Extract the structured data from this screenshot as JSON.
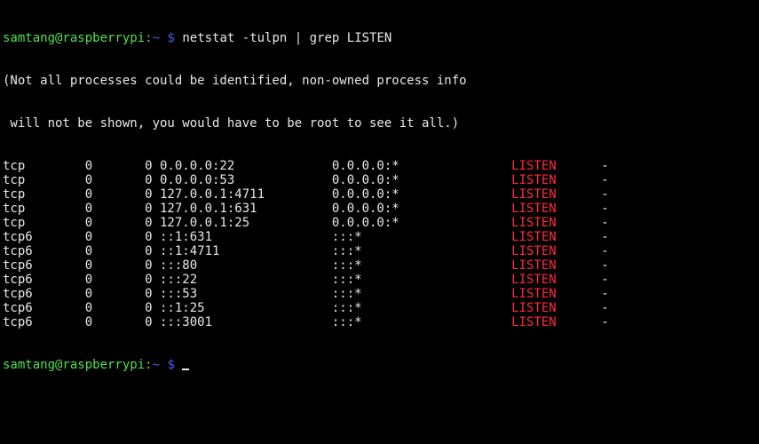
{
  "prompt": {
    "user_host": "samtang@raspberrypi",
    "sep": ":",
    "path": "~",
    "symbol": "$"
  },
  "command": "netstat -tulpn | grep LISTEN",
  "notice": [
    "(Not all processes could be identified, non-owned process info",
    " will not be shown, you would have to be root to see it all.)"
  ],
  "rows": [
    {
      "proto": "tcp",
      "recvq": "0",
      "sendq": "0",
      "local": "0.0.0.0:22",
      "foreign": "0.0.0.0:*",
      "state": "LISTEN",
      "pid": "-"
    },
    {
      "proto": "tcp",
      "recvq": "0",
      "sendq": "0",
      "local": "0.0.0.0:53",
      "foreign": "0.0.0.0:*",
      "state": "LISTEN",
      "pid": "-"
    },
    {
      "proto": "tcp",
      "recvq": "0",
      "sendq": "0",
      "local": "127.0.0.1:4711",
      "foreign": "0.0.0.0:*",
      "state": "LISTEN",
      "pid": "-"
    },
    {
      "proto": "tcp",
      "recvq": "0",
      "sendq": "0",
      "local": "127.0.0.1:631",
      "foreign": "0.0.0.0:*",
      "state": "LISTEN",
      "pid": "-"
    },
    {
      "proto": "tcp",
      "recvq": "0",
      "sendq": "0",
      "local": "127.0.0.1:25",
      "foreign": "0.0.0.0:*",
      "state": "LISTEN",
      "pid": "-"
    },
    {
      "proto": "tcp6",
      "recvq": "0",
      "sendq": "0",
      "local": "::1:631",
      "foreign": ":::*",
      "state": "LISTEN",
      "pid": "-"
    },
    {
      "proto": "tcp6",
      "recvq": "0",
      "sendq": "0",
      "local": "::1:4711",
      "foreign": ":::*",
      "state": "LISTEN",
      "pid": "-"
    },
    {
      "proto": "tcp6",
      "recvq": "0",
      "sendq": "0",
      "local": ":::80",
      "foreign": ":::*",
      "state": "LISTEN",
      "pid": "-"
    },
    {
      "proto": "tcp6",
      "recvq": "0",
      "sendq": "0",
      "local": ":::22",
      "foreign": ":::*",
      "state": "LISTEN",
      "pid": "-"
    },
    {
      "proto": "tcp6",
      "recvq": "0",
      "sendq": "0",
      "local": ":::53",
      "foreign": ":::*",
      "state": "LISTEN",
      "pid": "-"
    },
    {
      "proto": "tcp6",
      "recvq": "0",
      "sendq": "0",
      "local": "::1:25",
      "foreign": ":::*",
      "state": "LISTEN",
      "pid": "-"
    },
    {
      "proto": "tcp6",
      "recvq": "0",
      "sendq": "0",
      "local": ":::3001",
      "foreign": ":::*",
      "state": "LISTEN",
      "pid": "-"
    }
  ],
  "colors": {
    "prompt_user": "#4fe04f",
    "prompt_path": "#4a5cf0",
    "listen": "#ff2a3a",
    "text": "#e8e8e8",
    "background": "#000000"
  }
}
